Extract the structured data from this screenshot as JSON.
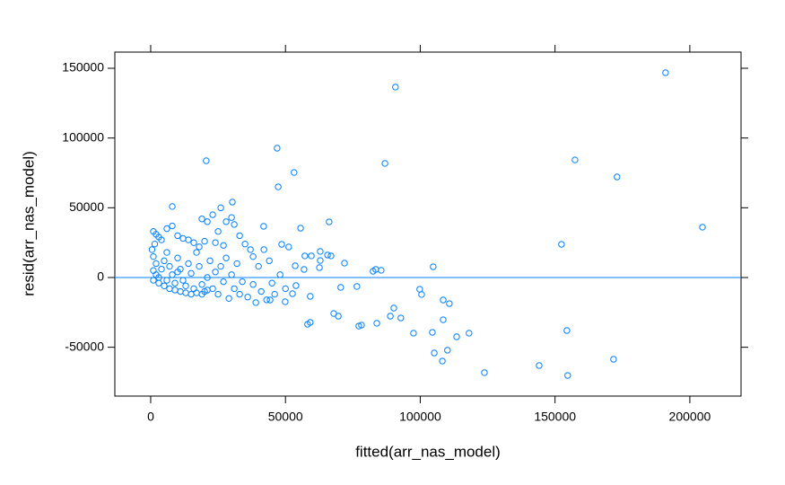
{
  "chart_data": {
    "type": "scatter",
    "xlabel": "fitted(arr_nas_model)",
    "ylabel": "resid(arr_nas_model)",
    "color": "#0080ff",
    "reference_line": 0,
    "xlim": [
      -13300,
      219000
    ],
    "ylim": [
      -85000,
      161600
    ],
    "xticks": [
      0,
      50000,
      100000,
      150000,
      200000
    ],
    "yticks": [
      -50000,
      0,
      50000,
      100000,
      150000
    ],
    "x": [
      191000,
      90800,
      46900,
      20600,
      86900,
      157400,
      173000,
      53200,
      47300,
      204700,
      152400,
      30300,
      8000,
      66200,
      55600,
      41900,
      104800,
      71900,
      82500,
      83500,
      85500,
      99800,
      100500,
      70500,
      76500,
      108500,
      110800,
      108500,
      90200,
      88900,
      92800,
      67900,
      69600,
      58200,
      59200,
      77200,
      78200,
      83900,
      97500,
      104500,
      118100,
      113500,
      110100,
      105200,
      108200,
      123800,
      144100,
      154400,
      154700,
      171700,
      44300,
      49900,
      52600,
      53900,
      53600,
      56900,
      59600,
      62900,
      65600,
      66900,
      62900,
      62600,
      57200,
      48600,
      51200,
      59200,
      1000,
      2000,
      3000,
      1500,
      500,
      4000,
      6000,
      8000,
      10000,
      12000,
      14000,
      16000,
      19000,
      21000,
      23000,
      26000,
      28000,
      30000,
      31000,
      33000,
      25000,
      20000,
      35000,
      37000,
      42000,
      44000,
      40000,
      38000,
      1000,
      2000,
      1000,
      2000,
      3000,
      1000,
      4000,
      5000,
      6000,
      7000,
      8000,
      9000,
      10000,
      11000,
      12000,
      13000,
      14000,
      15000,
      16000,
      17000,
      18000,
      19000,
      20000,
      21000,
      22000,
      23000,
      24000,
      25000,
      26000,
      27000,
      28000,
      29000,
      30000,
      31000,
      32000,
      33000,
      34000,
      36000,
      38000,
      39000,
      41000,
      43000,
      45000,
      46000,
      48000,
      50000,
      3000,
      5000,
      7000,
      9000,
      11000,
      13000,
      15000,
      17000,
      19000,
      21000,
      6000,
      10000,
      18000,
      24000,
      27000
    ],
    "values": [
      146800,
      136500,
      92700,
      83700,
      81800,
      84300,
      72100,
      75300,
      65000,
      36100,
      23800,
      54100,
      50900,
      39900,
      35400,
      36700,
      7700,
      10300,
      4500,
      5800,
      5200,
      -8400,
      -12200,
      -7100,
      -6400,
      -16100,
      -18700,
      -30300,
      -21900,
      -27700,
      -29000,
      -25800,
      -27700,
      -33500,
      -32200,
      -34800,
      -34100,
      -32800,
      -39900,
      -39300,
      -39900,
      -42500,
      -52100,
      -54100,
      -59900,
      -68200,
      -63100,
      -38000,
      -70200,
      -58600,
      -16100,
      -17400,
      -11600,
      -5800,
      8400,
      5800,
      15500,
      18700,
      16100,
      15500,
      12200,
      7100,
      15500,
      23800,
      21900,
      -13500,
      33000,
      31000,
      29000,
      24000,
      20000,
      27000,
      35000,
      37000,
      30000,
      28000,
      27000,
      25000,
      42000,
      40000,
      45000,
      50000,
      40000,
      43000,
      38000,
      30000,
      33000,
      26000,
      24000,
      20000,
      20000,
      12000,
      8000,
      15000,
      15000,
      10000,
      5000,
      2000,
      0,
      -2000,
      6000,
      12000,
      18000,
      8000,
      2000,
      -4000,
      14000,
      6000,
      -2000,
      -6000,
      10000,
      3000,
      -8000,
      18000,
      8000,
      -5000,
      -10000,
      0,
      12000,
      -8000,
      4000,
      -12000,
      8000,
      -3000,
      14000,
      -15000,
      2000,
      -8000,
      10000,
      -12000,
      -3000,
      -14000,
      -5000,
      -18000,
      -10000,
      -16000,
      -4000,
      -12000,
      2000,
      -8000,
      -4000,
      -6000,
      -8000,
      -9000,
      -10000,
      -11000,
      -12000,
      -11000,
      -12000,
      -9000,
      -2000,
      4000,
      22000,
      25000,
      23000
    ]
  }
}
